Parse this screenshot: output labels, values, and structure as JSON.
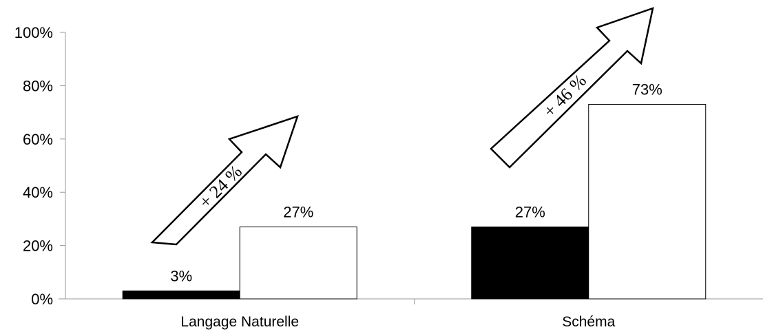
{
  "chart_data": {
    "type": "bar",
    "categories": [
      "Langage Naturelle",
      "Schéma"
    ],
    "series": [
      {
        "color": "#000000",
        "values": [
          3,
          27
        ],
        "labels": [
          "3%",
          "27%"
        ]
      },
      {
        "color": "#ffffff",
        "values": [
          27,
          73
        ],
        "labels": [
          "27%",
          "73%"
        ]
      }
    ],
    "ylim": [
      0,
      100
    ],
    "yticks": [
      0,
      20,
      40,
      60,
      80,
      100
    ],
    "ytick_labels": [
      "0%",
      "20%",
      "40%",
      "60%",
      "80%",
      "100%"
    ],
    "grid": false,
    "legend": "none",
    "annotations": [
      "+ 24 %",
      "+ 46 %"
    ]
  }
}
